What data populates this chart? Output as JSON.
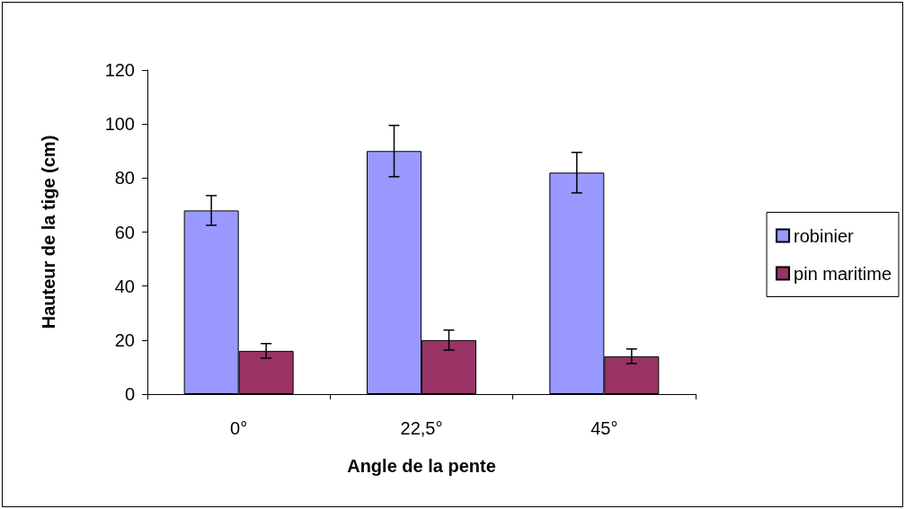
{
  "chart_data": {
    "type": "bar",
    "xlabel": "Angle de la pente",
    "ylabel": "Hauteur de la tige (cm)",
    "categories": [
      "0°",
      "22,5°",
      "45°"
    ],
    "series": [
      {
        "name": "robinier",
        "color": "#9999ff",
        "values": [
          68,
          90,
          82
        ],
        "errors": [
          5.5,
          9.5,
          7.5
        ]
      },
      {
        "name": "pin maritime",
        "color": "#993366",
        "values": [
          16,
          20,
          14
        ],
        "errors": [
          2.7,
          3.7,
          2.7
        ]
      }
    ],
    "ylim": [
      0,
      120
    ],
    "yticks": [
      0,
      20,
      40,
      60,
      80,
      100,
      120
    ],
    "grid": false,
    "legend": "right"
  }
}
